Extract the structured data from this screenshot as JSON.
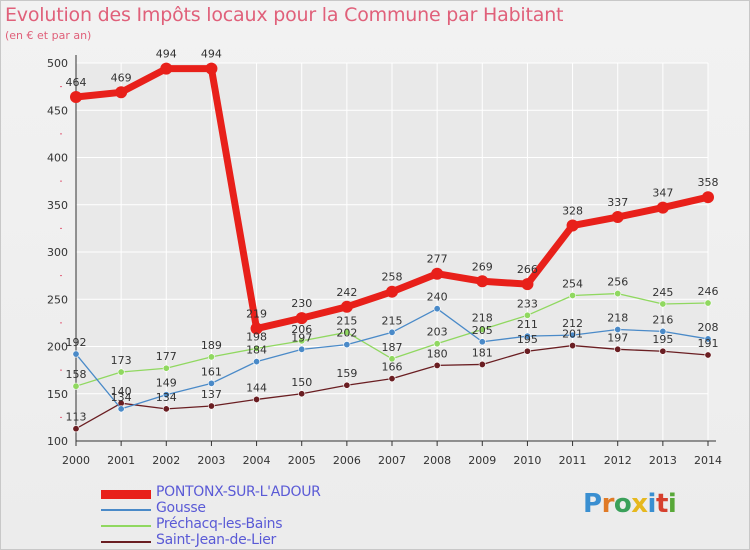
{
  "title": "Evolution des Impôts locaux pour la Commune par Habitant",
  "subtitle": "(en € et par an)",
  "logo_text": "Proxiti",
  "colors": {
    "title": "#e0607a",
    "legend_text": "#5a5ad6",
    "grid": "#ffffff",
    "axis": "#333333"
  },
  "chart_data": {
    "type": "line",
    "x": [
      "2000",
      "2001",
      "2002",
      "2003",
      "2004",
      "2005",
      "2006",
      "2007",
      "2008",
      "2009",
      "2010",
      "2011",
      "2012",
      "2013",
      "2014"
    ],
    "ylim": [
      100,
      500
    ],
    "yticks": [
      100,
      150,
      200,
      250,
      300,
      350,
      400,
      450,
      500
    ],
    "grid": true,
    "legend_position": "bottom-left",
    "series": [
      {
        "name": "PONTONX-SUR-L'ADOUR",
        "color": "#e8201a",
        "width": 7,
        "values": [
          464,
          469,
          494,
          494,
          219,
          230,
          242,
          258,
          277,
          269,
          266,
          328,
          337,
          347,
          358
        ]
      },
      {
        "name": "Gousse",
        "color": "#4a8ac8",
        "width": 1.3,
        "values": [
          192,
          134,
          149,
          161,
          184,
          197,
          202,
          215,
          240,
          205,
          211,
          212,
          218,
          216,
          208
        ]
      },
      {
        "name": "Préchacq-les-Bains",
        "color": "#90d860",
        "width": 1.3,
        "values": [
          158,
          173,
          177,
          189,
          198,
          206,
          215,
          187,
          203,
          218,
          233,
          254,
          256,
          245,
          246
        ]
      },
      {
        "name": "Saint-Jean-de-Lier",
        "color": "#6a1e22",
        "width": 1.3,
        "values": [
          113,
          140,
          134,
          137,
          144,
          150,
          159,
          166,
          180,
          181,
          195,
          201,
          197,
          195,
          191
        ]
      }
    ]
  }
}
